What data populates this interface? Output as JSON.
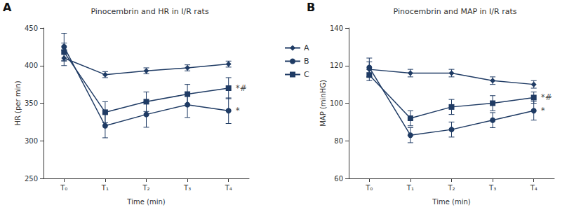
{
  "chart_data": [
    {
      "type": "line",
      "panel_label": "A",
      "title": "Pinocembrin and HR in I/R rats",
      "x_label": "Time (min)",
      "y_label": "HR (per min)",
      "categories": [
        "T₀",
        "T₁",
        "T₂",
        "T₃",
        "T₄"
      ],
      "series": [
        {
          "name": "A",
          "color": "#1f3b64",
          "marker": "diamond",
          "values": [
            410,
            388,
            393,
            397,
            402
          ],
          "errors": [
            10,
            4,
            4,
            4,
            4
          ]
        },
        {
          "name": "B",
          "color": "#1f3b64",
          "marker": "circle",
          "values": [
            425,
            320,
            335,
            348,
            340
          ],
          "errors": [
            18,
            16,
            17,
            17,
            17
          ]
        },
        {
          "name": "C",
          "color": "#1f3b64",
          "marker": "square",
          "values": [
            418,
            338,
            352,
            362,
            370
          ],
          "errors": [
            12,
            14,
            13,
            13,
            14
          ]
        }
      ],
      "annotations": [
        {
          "text": "*#",
          "x": "T₄",
          "y": 370
        },
        {
          "text": "*",
          "x": "T₄",
          "y": 340
        }
      ],
      "ylim": [
        250,
        450
      ],
      "yticks": [
        250,
        300,
        350,
        400,
        450
      ],
      "grid": false,
      "legend": "right"
    },
    {
      "type": "line",
      "panel_label": "B",
      "title": "Pinocembrin and MAP in I/R rats",
      "x_label": "Time (min)",
      "y_label": "MAP (minHG)",
      "categories": [
        "T₀",
        "T₁",
        "T₂",
        "T₃",
        "T₄"
      ],
      "series": [
        {
          "name": "A",
          "color": "#1f3b64",
          "marker": "diamond",
          "values": [
            118,
            116,
            116,
            112,
            110
          ],
          "errors": [
            4,
            2,
            2,
            2,
            2
          ]
        },
        {
          "name": "B",
          "color": "#1f3b64",
          "marker": "circle",
          "values": [
            119,
            83,
            86,
            91,
            96
          ],
          "errors": [
            5,
            4,
            4,
            4,
            5
          ]
        },
        {
          "name": "C",
          "color": "#1f3b64",
          "marker": "square",
          "values": [
            115,
            92,
            98,
            100,
            103
          ],
          "errors": [
            3,
            4,
            4,
            4,
            3
          ]
        }
      ],
      "annotations": [
        {
          "text": "*#",
          "x": "T₄",
          "y": 103
        },
        {
          "text": "*",
          "x": "T₄",
          "y": 96
        }
      ],
      "ylim": [
        60,
        140
      ],
      "yticks": [
        60,
        80,
        100,
        120,
        140
      ],
      "grid": false
    }
  ]
}
